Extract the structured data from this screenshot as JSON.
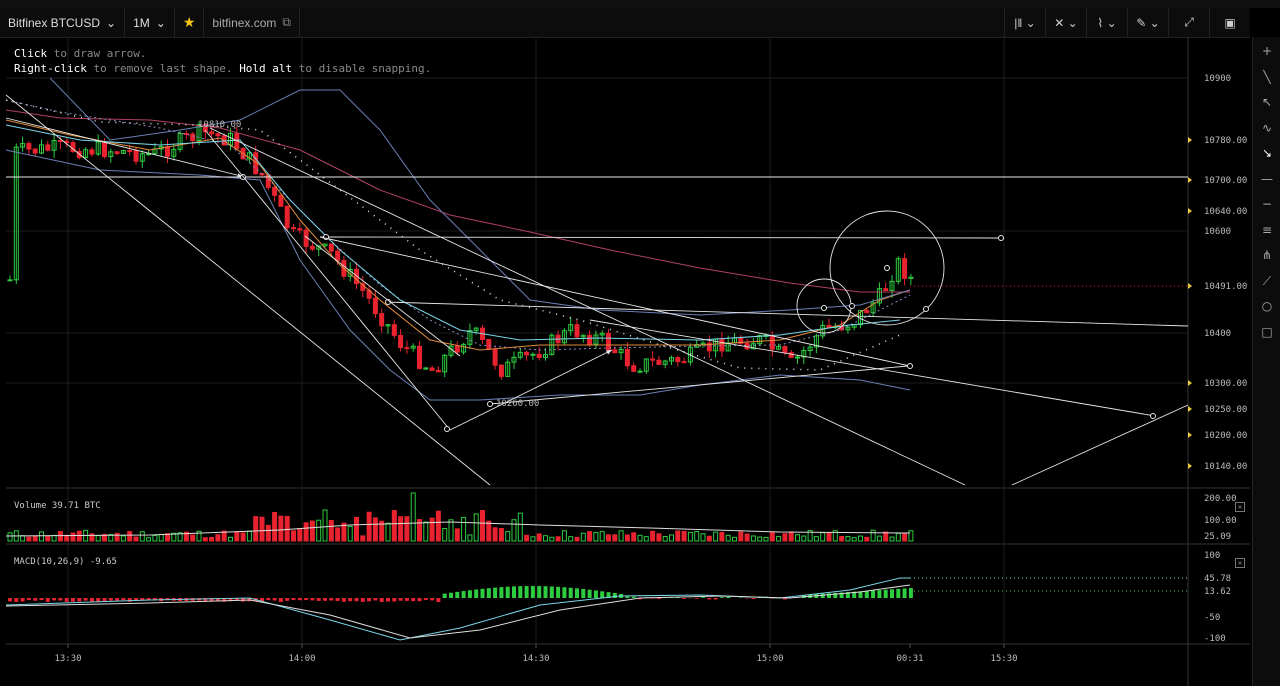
{
  "toolbar": {
    "symbol": "Bitfinex BTCUSD",
    "interval": "1M",
    "source": "bitfinex.com",
    "right_buttons": [
      "bars-icon",
      "crosshair-icon",
      "indicator-icon",
      "pencil-icon",
      "expand-icon",
      "screenshot-icon"
    ]
  },
  "hint": {
    "line1_key": "Click",
    "line1_rest": " to draw arrow.",
    "line2_key": "Right-click",
    "line2_mid": " to remove last shape. ",
    "line2_key2": "Hold alt",
    "line2_rest": " to disable snapping."
  },
  "price_axis": {
    "labels": [
      "10900",
      "10780.00",
      "10700.00",
      "10640.00",
      "10600",
      "10491.00",
      "10400",
      "10300.00",
      "10250.00",
      "10200.00",
      "10140.00"
    ],
    "current_price": "10491.00",
    "high_label": "10810.00",
    "low_label": "10260.00"
  },
  "volume_panel": {
    "label": "Volume 39.71 BTC",
    "axis": [
      "200.00",
      "100.00",
      "25.09"
    ]
  },
  "macd_panel": {
    "label": "MACD(10,26,9) -9.65",
    "axis": [
      "100",
      "45.78",
      "13.62",
      "-50",
      "-100"
    ]
  },
  "time_axis": {
    "labels": [
      "13:30",
      "14:00",
      "14:30",
      "15:00",
      "00:31",
      "15:30"
    ]
  },
  "colors": {
    "up": "#2ecc40",
    "down": "#e8232f",
    "bb": "#6a7fb5",
    "ma_red": "#b04060",
    "ma_orange": "#e08a3a",
    "ma_cyan": "#7ad6e8"
  },
  "side_tools": [
    "plus-icon",
    "line-icon",
    "ray-icon",
    "curve-icon",
    "arrow-icon",
    "hline-icon",
    "dash-icon",
    "fib-icon",
    "pitchfork-icon",
    "fan-icon",
    "circle-icon",
    "rect-icon"
  ]
}
